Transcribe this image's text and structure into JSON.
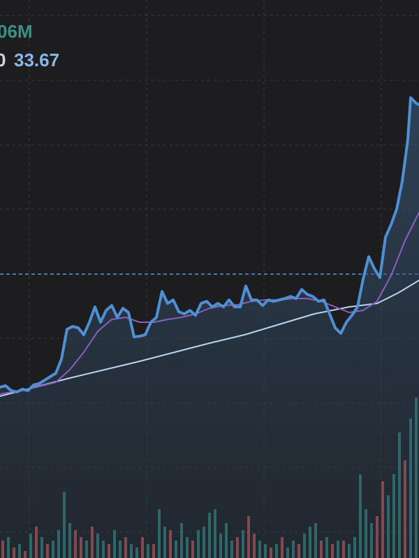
{
  "chart_data": {
    "type": "line",
    "labels": {
      "volume": "06M",
      "left": "0",
      "ma": "33.67"
    },
    "label_colors": {
      "volume": "#3f8f86",
      "left": "#d8d8d8",
      "ma": "#8ab8e6"
    },
    "xlim": [
      0,
      600
    ],
    "ylim": [
      0,
      80
    ],
    "y2lim": [
      0,
      800
    ],
    "gridlines_x": [
      42,
      210,
      378,
      546
    ],
    "gridlines_y": [
      77.8,
      68.5,
      59.2,
      50,
      31.5,
      22.2,
      13,
      3.7
    ],
    "price_line": 40.7,
    "series": [
      {
        "name": "price",
        "color": "#4f90d4",
        "width": 4,
        "x": [
          0,
          8,
          16,
          24,
          32,
          40,
          48,
          56,
          64,
          72,
          80,
          88,
          96,
          104,
          112,
          120,
          128,
          136,
          144,
          152,
          160,
          168,
          176,
          184,
          192,
          200,
          208,
          216,
          224,
          232,
          240,
          248,
          256,
          264,
          272,
          280,
          288,
          296,
          304,
          312,
          320,
          328,
          336,
          344,
          352,
          360,
          368,
          376,
          384,
          392,
          400,
          408,
          416,
          424,
          432,
          440,
          448,
          456,
          464,
          472,
          480,
          488,
          496,
          504,
          512,
          520,
          528,
          536,
          544,
          552,
          560,
          568,
          576,
          584,
          588,
          596,
          600
        ],
        "values": [
          24.5,
          24.7,
          24,
          23.8,
          24.2,
          24,
          24.8,
          25,
          25.5,
          26,
          26.5,
          28.5,
          32.8,
          33.2,
          33,
          32,
          33.8,
          36,
          33.8,
          35.5,
          36.2,
          34.5,
          35.8,
          35.2,
          31.7,
          31.8,
          32,
          33.8,
          34.5,
          38.2,
          36.5,
          37,
          35.3,
          35,
          35.5,
          34.8,
          36.5,
          36.8,
          36,
          36.5,
          36,
          37,
          36,
          36,
          39,
          37,
          37,
          36.2,
          37,
          36.8,
          37,
          37.2,
          37.5,
          37.2,
          38.5,
          37.8,
          37.5,
          36.8,
          37,
          35,
          33,
          32.2,
          33.8,
          34.8,
          36,
          40,
          43.2,
          41.5,
          40.2,
          46,
          47.8,
          50,
          54,
          60,
          66,
          65.2,
          65
        ]
      },
      {
        "name": "ma-short",
        "color": "#8a5fc0",
        "width": 2,
        "x": [
          0,
          40,
          80,
          100,
          120,
          140,
          160,
          180,
          200,
          220,
          240,
          260,
          280,
          300,
          320,
          340,
          360,
          380,
          400,
          420,
          440,
          460,
          480,
          500,
          520,
          540,
          560,
          580,
          600
        ],
        "values": [
          23.5,
          24.2,
          25.2,
          27,
          29.5,
          32.5,
          34.2,
          34.5,
          33.8,
          33.8,
          34.2,
          34.5,
          35,
          35.8,
          36.2,
          36.3,
          36.8,
          37,
          37,
          37.2,
          37.2,
          36.8,
          36,
          35.2,
          35.5,
          36.8,
          40.5,
          45.5,
          49.5
        ]
      },
      {
        "name": "ma-long",
        "color": "#b7d6ef",
        "width": 2,
        "x": [
          0,
          50,
          100,
          150,
          200,
          250,
          300,
          350,
          400,
          450,
          500,
          540,
          570,
          600
        ],
        "values": [
          23.2,
          24.5,
          25.8,
          27,
          28.2,
          29.5,
          30.8,
          32,
          33.5,
          35,
          36,
          36.5,
          38,
          39.8
        ]
      }
    ],
    "volume": {
      "x": [
        4,
        12,
        20,
        28,
        36,
        44,
        52,
        60,
        68,
        76,
        84,
        92,
        100,
        108,
        116,
        124,
        132,
        140,
        148,
        156,
        164,
        172,
        180,
        188,
        196,
        204,
        212,
        220,
        228,
        236,
        244,
        252,
        260,
        268,
        276,
        284,
        292,
        300,
        308,
        316,
        324,
        332,
        340,
        348,
        356,
        364,
        372,
        380,
        388,
        396,
        404,
        412,
        420,
        428,
        436,
        444,
        452,
        460,
        468,
        476,
        484,
        492,
        500,
        508,
        516,
        524,
        532,
        540,
        548,
        556,
        564,
        572,
        580,
        588,
        596
      ],
      "up_color": "#2f7f78",
      "down_color": "#b5504e",
      "up": [
        null,
        30,
        null,
        20,
        null,
        35,
        null,
        30,
        null,
        25,
        40,
        95,
        50,
        null,
        null,
        25,
        null,
        35,
        25,
        null,
        40,
        25,
        null,
        20,
        15,
        null,
        20,
        null,
        70,
        45,
        null,
        25,
        50,
        30,
        null,
        40,
        45,
        65,
        70,
        35,
        50,
        25,
        null,
        40,
        null,
        null,
        25,
        20,
        null,
        20,
        null,
        15,
        25,
        null,
        35,
        45,
        50,
        null,
        30,
        null,
        25,
        null,
        20,
        30,
        120,
        70,
        50,
        null,
        null,
        90,
        120,
        180,
        null,
        200,
        230
      ],
      "down": [
        25,
        null,
        15,
        null,
        10,
        null,
        45,
        null,
        20,
        null,
        null,
        null,
        null,
        40,
        30,
        null,
        45,
        null,
        null,
        20,
        null,
        null,
        30,
        null,
        null,
        30,
        null,
        20,
        null,
        null,
        40,
        null,
        null,
        null,
        25,
        null,
        null,
        null,
        null,
        null,
        null,
        null,
        30,
        null,
        60,
        35,
        null,
        null,
        15,
        null,
        30,
        null,
        null,
        20,
        null,
        null,
        null,
        25,
        null,
        20,
        null,
        25,
        null,
        null,
        null,
        null,
        null,
        60,
        110,
        null,
        null,
        null,
        140,
        null,
        null
      ]
    }
  }
}
